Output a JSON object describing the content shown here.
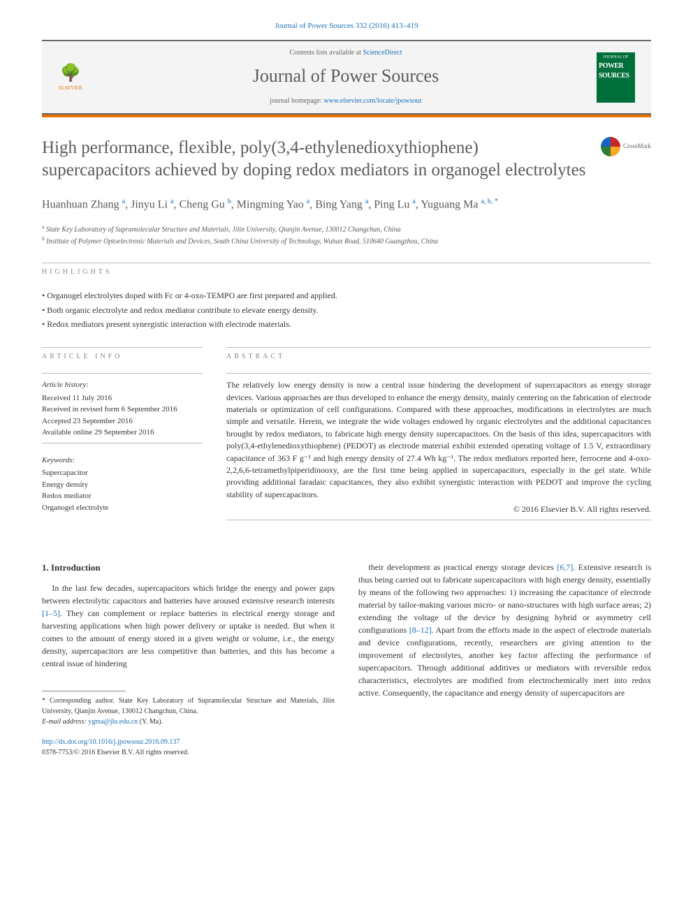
{
  "top_citation": "Journal of Power Sources 332 (2016) 413–419",
  "banner": {
    "contents_prefix": "Contents lists available at ",
    "contents_link": "ScienceDirect",
    "journal_name": "Journal of Power Sources",
    "homepage_prefix": "journal homepage: ",
    "homepage_url": "www.elsevier.com/locate/jpowsour",
    "publisher": "ELSEVIER",
    "cover_text_top": "JOURNAL OF",
    "cover_text_main": "POWER SOURCES"
  },
  "crossmark_label": "CrossMark",
  "title": "High performance, flexible, poly(3,4-ethylenedioxythiophene) supercapacitors achieved by doping redox mediators in organogel electrolytes",
  "authors_html": "Huanhuan Zhang <sup>a</sup>, Jinyu Li <sup>a</sup>, Cheng Gu <sup>b</sup>, Mingming Yao <sup>a</sup>, Bing Yang <sup>a</sup>, Ping Lu <sup>a</sup>, Yuguang Ma <sup>a, b, *</sup>",
  "affiliations": {
    "a": "State Key Laboratory of Supramolecular Structure and Materials, Jilin University, Qianjin Avenue, 130012 Changchun, China",
    "b": "Institute of Polymer Optoelectronic Materials and Devices, South China University of Technology, Wuhan Road, 510640 Guangzhou, China"
  },
  "highlights_label": "highlights",
  "highlights": [
    "Organogel electrolytes doped with Fc or 4-oxo-TEMPO are first prepared and applied.",
    "Both organic electrolyte and redox mediator contribute to elevate energy density.",
    "Redox mediators present synergistic interaction with electrode materials."
  ],
  "article_info_label": "article info",
  "abstract_label": "abstract",
  "history": {
    "label": "Article history:",
    "received": "Received 11 July 2016",
    "revised": "Received in revised form 6 September 2016",
    "accepted": "Accepted 23 September 2016",
    "online": "Available online 29 September 2016"
  },
  "keywords_label": "Keywords:",
  "keywords": [
    "Supercapacitor",
    "Energy density",
    "Redox mediator",
    "Organogel electrolyte"
  ],
  "abstract": "The relatively low energy density is now a central issue hindering the development of supercapacitors as energy storage devices. Various approaches are thus developed to enhance the energy density, mainly centering on the fabrication of electrode materials or optimization of cell configurations. Compared with these approaches, modifications in electrolytes are much simple and versatile. Herein, we integrate the wide voltages endowed by organic electrolytes and the additional capacitances brought by redox mediators, to fabricate high energy density supercapacitors. On the basis of this idea, supercapacitors with poly(3,4-ethylenedioxythiophene) (PEDOT) as electrode material exhibit extended operating voltage of 1.5 V, extraordinary capacitance of 363 F g⁻¹ and high energy density of 27.4 Wh kg⁻¹. The redox mediators reported here, ferrocene and 4-oxo-2,2,6,6-tetramethylpiperidinooxy, are the first time being applied in supercapacitors, especially in the gel state. While providing additional faradaic capacitances, they also exhibit synergistic interaction with PEDOT and improve the cycling stability of supercapacitors.",
  "copyright": "© 2016 Elsevier B.V. All rights reserved.",
  "intro": {
    "heading": "1. Introduction",
    "col1": "In the last few decades, supercapacitors which bridge the energy and power gaps between electrolytic capacitors and batteries have aroused extensive research interests [1–5]. They can complement or replace batteries in electrical energy storage and harvesting applications when high power delivery or uptake is needed. But when it comes to the amount of energy stored in a given weight or volume, i.e., the energy density, supercapacitors are less competitive than batteries, and this has become a central issue of hindering",
    "col2": "their development as practical energy storage devices [6,7]. Extensive research is thus being carried out to fabricate supercapacitors with high energy density, essentially by means of the following two approaches: 1) increasing the capacitance of electrode material by tailor-making various micro- or nano-structures with high surface areas; 2) extending the voltage of the device by designing hybrid or asymmetry cell configurations [8–12]. Apart from the efforts made in the aspect of electrode materials and device configurations, recently, researchers are giving attention to the improvement of electrolytes, another key factor affecting the performance of supercapacitors. Through additional additives or mediators with reversible redox characteristics, electrolytes are modified from electrochemically inert into redox active. Consequently, the capacitance and energy density of supercapacitors are",
    "refs": {
      "r1": "[1–5]",
      "r2": "[6,7]",
      "r3": "[8–12]"
    }
  },
  "corresponding": {
    "label": "* Corresponding author. State Key Laboratory of Supramolecular Structure and Materials, Jilin University, Qianjin Avenue, 130012 Changchun, China.",
    "email_label": "E-mail address:",
    "email": "ygma@jlu.edu.cn",
    "email_name": "(Y. Ma)."
  },
  "doi": "http://dx.doi.org/10.1016/j.jpowsour.2016.09.137",
  "issn": "0378-7753/© 2016 Elsevier B.V. All rights reserved.",
  "colors": {
    "link": "#1a6fb5",
    "accent": "#e57200",
    "cover": "#006f3a",
    "text": "#333333",
    "muted": "#888888"
  }
}
